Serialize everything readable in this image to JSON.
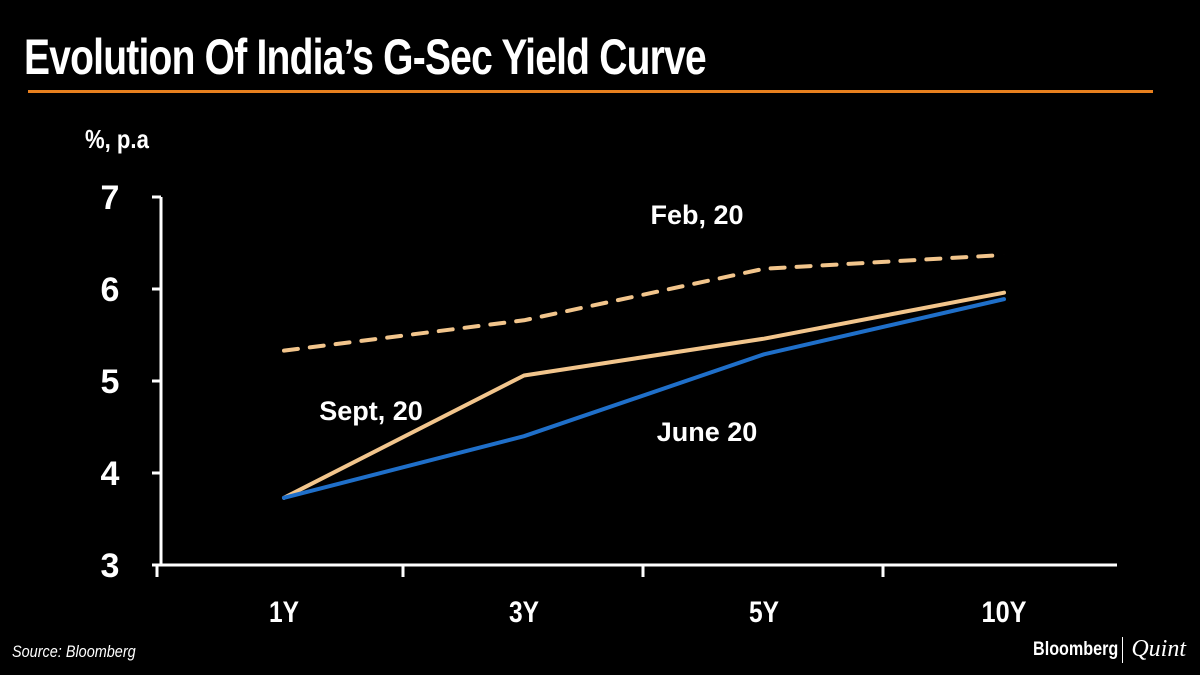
{
  "header": {
    "title": "Evolution Of India’s G-Sec Yield Curve"
  },
  "footer": {
    "source": "Source: Bloomberg",
    "brand_primary": "Bloomberg",
    "brand_secondary": "Quint"
  },
  "colors": {
    "accent_rule": "#e8801e",
    "feb": "#f2c58c",
    "sept": "#f2c58c",
    "june": "#1f6fc9",
    "axis": "#ffffff"
  },
  "chart_data": {
    "type": "line",
    "title": "Evolution Of India’s G-Sec Yield Curve",
    "ylabel": "%, p.a",
    "xlabel": "",
    "categories": [
      "1Y",
      "3Y",
      "5Y",
      "10Y"
    ],
    "ylim": [
      3,
      7
    ],
    "yticks": [
      3,
      4,
      5,
      6,
      7
    ],
    "grid": false,
    "series": [
      {
        "name": "Feb, 20",
        "style": "dashed",
        "color": "#f2c58c",
        "values": [
          5.33,
          5.66,
          6.22,
          6.37
        ]
      },
      {
        "name": "Sept, 20",
        "style": "solid",
        "color": "#f2c58c",
        "values": [
          3.73,
          5.06,
          5.46,
          5.96
        ]
      },
      {
        "name": "June 20",
        "style": "solid",
        "color": "#1f6fc9",
        "values": [
          3.73,
          4.4,
          5.29,
          5.89
        ]
      }
    ],
    "annotations": [
      "Feb, 20",
      "Sept, 20",
      "June 20"
    ]
  }
}
